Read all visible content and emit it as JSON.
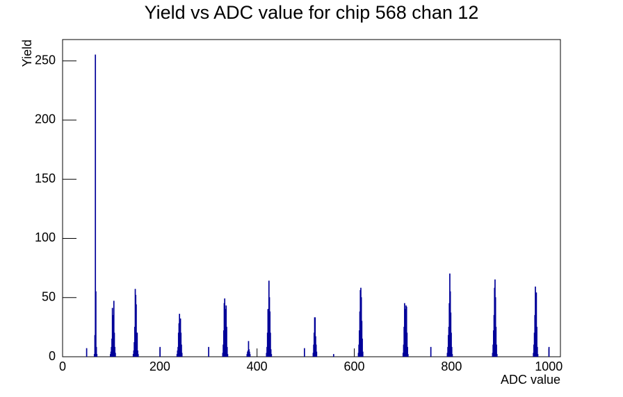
{
  "chart_data": {
    "type": "histogram",
    "title": "Yield vs ADC value for chip 568 chan 12",
    "x_label": "ADC value",
    "y_label": "Yield",
    "color": "#000099",
    "bin_width": 1,
    "xlim": [
      0,
      1024
    ],
    "ylim": [
      0,
      268
    ],
    "xticks": [
      0,
      200,
      400,
      600,
      800,
      1000
    ],
    "yticks": [
      0,
      50,
      100,
      150,
      200,
      250
    ],
    "x": [
      49,
      65,
      66,
      67,
      68,
      69,
      70,
      98,
      99,
      100,
      101,
      102,
      103,
      104,
      105,
      106,
      107,
      108,
      145,
      146,
      147,
      148,
      149,
      150,
      151,
      152,
      153,
      154,
      155,
      200,
      235,
      236,
      237,
      238,
      239,
      240,
      241,
      242,
      243,
      244,
      245,
      300,
      329,
      330,
      331,
      332,
      333,
      334,
      335,
      336,
      337,
      338,
      339,
      379,
      380,
      381,
      382,
      383,
      384,
      385,
      419,
      420,
      421,
      422,
      423,
      424,
      425,
      426,
      427,
      428,
      429,
      497,
      515,
      516,
      517,
      518,
      519,
      520,
      521,
      522,
      557,
      608,
      609,
      610,
      611,
      612,
      613,
      614,
      615,
      616,
      617,
      700,
      701,
      702,
      703,
      704,
      705,
      706,
      707,
      708,
      709,
      710,
      757,
      791,
      792,
      793,
      794,
      795,
      796,
      797,
      798,
      799,
      800,
      801,
      884,
      885,
      886,
      887,
      888,
      889,
      890,
      891,
      892,
      893,
      968,
      969,
      970,
      971,
      972,
      973,
      974,
      975,
      976,
      977,
      1000
    ],
    "values": [
      7,
      2,
      18,
      255,
      55,
      8,
      2,
      2,
      4,
      8,
      15,
      41,
      30,
      35,
      47,
      20,
      8,
      3,
      2,
      5,
      12,
      25,
      57,
      52,
      44,
      20,
      20,
      5,
      2,
      8,
      2,
      5,
      8,
      20,
      28,
      36,
      30,
      32,
      20,
      10,
      3,
      8,
      3,
      10,
      22,
      45,
      49,
      40,
      35,
      43,
      25,
      8,
      2,
      2,
      4,
      5,
      13,
      6,
      4,
      2,
      3,
      8,
      20,
      40,
      35,
      64,
      50,
      38,
      20,
      6,
      2,
      7,
      3,
      10,
      20,
      33,
      33,
      17,
      10,
      4,
      2,
      3,
      10,
      22,
      38,
      56,
      58,
      50,
      30,
      15,
      4,
      3,
      10,
      25,
      45,
      40,
      35,
      43,
      42,
      20,
      8,
      2,
      8,
      3,
      8,
      18,
      25,
      45,
      70,
      55,
      37,
      20,
      8,
      2,
      3,
      10,
      22,
      35,
      58,
      65,
      50,
      25,
      10,
      2,
      3,
      10,
      20,
      35,
      59,
      50,
      54,
      25,
      8,
      2,
      8
    ]
  }
}
